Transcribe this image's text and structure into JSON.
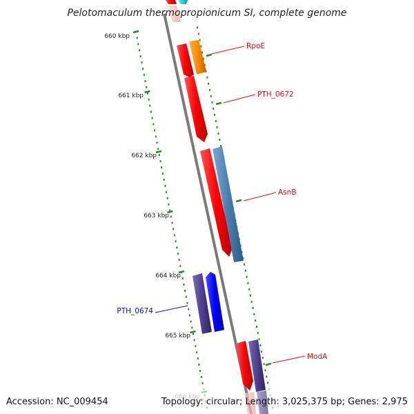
{
  "title": "Pelotomaculum thermopropionicum SI, complete genome",
  "tick_labels": [
    "660 kbp",
    "661 kbp",
    "662 kbp",
    "663 kbp",
    "664 kbp",
    "665 kbp",
    "666 kbp"
  ],
  "genes": [
    {
      "label": "RpoE",
      "color": "#dd1111"
    },
    {
      "label": "PTH_0672",
      "color": "#dd1111"
    },
    {
      "label": "AsnB",
      "color": "#dd1111"
    },
    {
      "label": "PTH_0674",
      "color": "#1111bb"
    },
    {
      "label": "ModA",
      "color": "#dd1111"
    }
  ],
  "footer": {
    "accession": "Accession: NC_009454",
    "stats": "Topology: circular; Length: 3,025,375 bp; Genes: 2,975"
  },
  "colors": {
    "backbone": "#7a7a7a",
    "ruler_ticks": "#2a8a2a",
    "red_gene": "#ff0000",
    "orange_gene": "#ff8c00",
    "steelblue_gene": "#4a7fb0",
    "purple_gene": "#4d3f8c",
    "blue_gene": "#0000ff",
    "cyan_gene": "#00cccc"
  }
}
